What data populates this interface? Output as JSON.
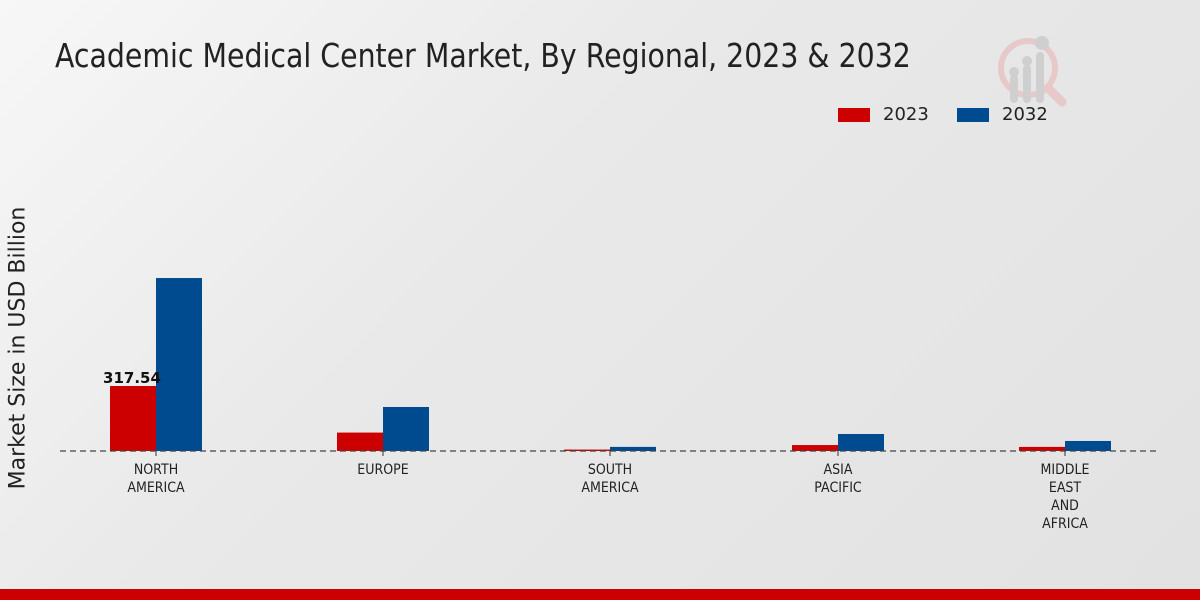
{
  "chart_data": {
    "type": "bar",
    "title": "Academic Medical Center Market, By Regional, 2023 & 2032",
    "ylabel": "Market Size in USD Billion",
    "xlabel": "",
    "categories": [
      "NORTH\nAMERICA",
      "EUROPE",
      "SOUTH\nAMERICA",
      "ASIA\nPACIFIC",
      "MIDDLE\nEAST\nAND\nAFRICA"
    ],
    "series": [
      {
        "name": "2023",
        "color": "#cc0000",
        "values": [
          317.54,
          90,
          7,
          29,
          20
        ]
      },
      {
        "name": "2032",
        "color": "#004a8f",
        "values": [
          845,
          215,
          20,
          83,
          49
        ]
      }
    ],
    "data_labels": [
      {
        "category": "NORTH\nAMERICA",
        "series": "2023",
        "text": "317.54"
      }
    ],
    "legend_position": "top-right",
    "grid": false,
    "baseline": "dashed"
  },
  "footer_color": "#cc0000"
}
